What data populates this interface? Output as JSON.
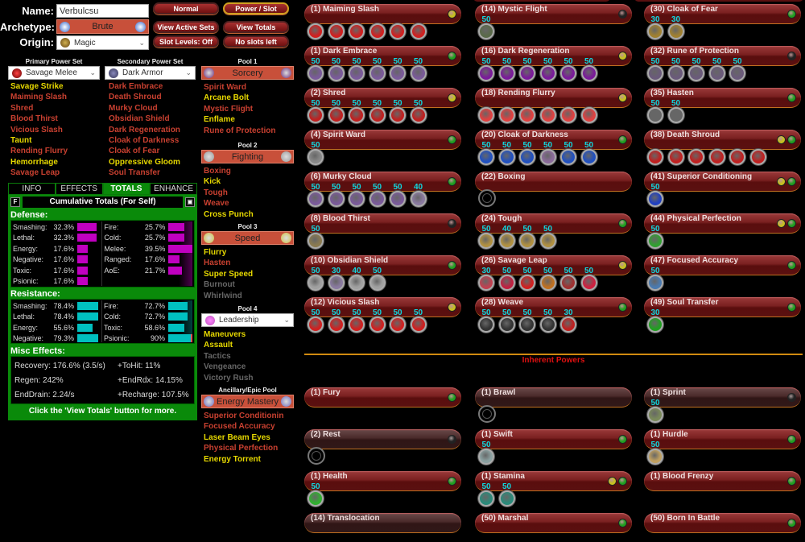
{
  "header": {
    "name_label": "Name:",
    "name_value": "Verbulcsu",
    "archetype_label": "Archetype:",
    "archetype_value": "Brute",
    "origin_label": "Origin:",
    "origin_value": "Magic"
  },
  "buttons": {
    "normal": "Normal",
    "power_slot": "Power / Slot",
    "view_active_sets": "View Active Sets",
    "view_totals": "View Totals",
    "slot_levels": "Slot Levels: Off",
    "no_slots": "No slots left"
  },
  "primary": {
    "header": "Primary Power Set",
    "value": "Savage Melee",
    "powers": [
      {
        "label": "Savage Strike",
        "state": "avail"
      },
      {
        "label": "Maiming Slash",
        "state": "taken"
      },
      {
        "label": "Shred",
        "state": "taken"
      },
      {
        "label": "Blood Thirst",
        "state": "taken"
      },
      {
        "label": "Vicious Slash",
        "state": "taken"
      },
      {
        "label": "Taunt",
        "state": "avail"
      },
      {
        "label": "Rending Flurry",
        "state": "taken"
      },
      {
        "label": "Hemorrhage",
        "state": "avail"
      },
      {
        "label": "Savage Leap",
        "state": "taken"
      }
    ]
  },
  "secondary": {
    "header": "Secondary Power Set",
    "value": "Dark Armor",
    "powers": [
      {
        "label": "Dark Embrace",
        "state": "taken"
      },
      {
        "label": "Death Shroud",
        "state": "taken"
      },
      {
        "label": "Murky Cloud",
        "state": "taken"
      },
      {
        "label": "Obsidian Shield",
        "state": "taken"
      },
      {
        "label": "Dark Regeneration",
        "state": "taken"
      },
      {
        "label": "Cloak of Darkness",
        "state": "taken"
      },
      {
        "label": "Cloak of Fear",
        "state": "taken"
      },
      {
        "label": "Oppressive Gloom",
        "state": "avail"
      },
      {
        "label": "Soul Transfer",
        "state": "taken"
      }
    ]
  },
  "pools": [
    {
      "header": "Pool 1",
      "value": "Sorcery",
      "type": "box",
      "powers": [
        {
          "label": "Spirit Ward",
          "state": "taken"
        },
        {
          "label": "Arcane Bolt",
          "state": "avail"
        },
        {
          "label": "Mystic Flight",
          "state": "taken"
        },
        {
          "label": "Enflame",
          "state": "avail"
        },
        {
          "label": "Rune of Protection",
          "state": "taken"
        }
      ]
    },
    {
      "header": "Pool 2",
      "value": "Fighting",
      "type": "box",
      "powers": [
        {
          "label": "Boxing",
          "state": "taken"
        },
        {
          "label": "Kick",
          "state": "avail"
        },
        {
          "label": "Tough",
          "state": "taken"
        },
        {
          "label": "Weave",
          "state": "taken"
        },
        {
          "label": "Cross Punch",
          "state": "avail"
        }
      ]
    },
    {
      "header": "Pool 3",
      "value": "Speed",
      "type": "box",
      "powers": [
        {
          "label": "Flurry",
          "state": "avail"
        },
        {
          "label": "Hasten",
          "state": "taken"
        },
        {
          "label": "Super Speed",
          "state": "avail"
        },
        {
          "label": "Burnout",
          "state": "na"
        },
        {
          "label": "Whirlwind",
          "state": "na"
        }
      ]
    },
    {
      "header": "Pool 4",
      "value": "Leadership",
      "type": "dropdown",
      "powers": [
        {
          "label": "Maneuvers",
          "state": "avail"
        },
        {
          "label": "Assault",
          "state": "avail"
        },
        {
          "label": "Tactics",
          "state": "na"
        },
        {
          "label": "Vengeance",
          "state": "na"
        },
        {
          "label": "Victory Rush",
          "state": "na"
        }
      ]
    },
    {
      "header": "Ancillary/Epic Pool",
      "value": "Energy Mastery",
      "type": "box",
      "powers": [
        {
          "label": "Superior Conditionin",
          "state": "taken"
        },
        {
          "label": "Focused Accuracy",
          "state": "taken"
        },
        {
          "label": "Laser Beam Eyes",
          "state": "avail"
        },
        {
          "label": "Physical Perfection",
          "state": "taken"
        },
        {
          "label": "Energy Torrent",
          "state": "avail"
        }
      ]
    }
  ],
  "info_tabs": {
    "tabs": [
      "INFO",
      "EFFECTS",
      "TOTALS",
      "ENHANCE"
    ],
    "active": "TOTALS",
    "f_button": "F",
    "title": "Cumulative Totals (For Self)",
    "defense_label": "Defense:",
    "defense": [
      {
        "label": "Smashing:",
        "value": "32.3%",
        "pct": 32.3
      },
      {
        "label": "Lethal:",
        "value": "32.3%",
        "pct": 32.3
      },
      {
        "label": "Energy:",
        "value": "17.6%",
        "pct": 17.6
      },
      {
        "label": "Negative:",
        "value": "17.6%",
        "pct": 17.6
      },
      {
        "label": "Toxic:",
        "value": "17.6%",
        "pct": 17.6
      },
      {
        "label": "Psionic:",
        "value": "17.6%",
        "pct": 17.6
      },
      {
        "label": "Fire:",
        "value": "25.7%",
        "pct": 25.7
      },
      {
        "label": "Cold:",
        "value": "25.7%",
        "pct": 25.7
      },
      {
        "label": "Melee:",
        "value": "39.5%",
        "pct": 39.5
      },
      {
        "label": "Ranged:",
        "value": "17.6%",
        "pct": 17.6
      },
      {
        "label": "AoE:",
        "value": "21.7%",
        "pct": 21.7
      }
    ],
    "resistance_label": "Resistance:",
    "resistance": [
      {
        "label": "Smashing:",
        "value": "78.4%",
        "pct": 78.4
      },
      {
        "label": "Lethal:",
        "value": "78.4%",
        "pct": 78.4
      },
      {
        "label": "Energy:",
        "value": "55.6%",
        "pct": 55.6
      },
      {
        "label": "Negative:",
        "value": "79.3%",
        "pct": 79.3
      },
      {
        "label": "Fire:",
        "value": "72.7%",
        "pct": 72.7
      },
      {
        "label": "Cold:",
        "value": "72.7%",
        "pct": 72.7
      },
      {
        "label": "Toxic:",
        "value": "58.6%",
        "pct": 58.6
      },
      {
        "label": "Psionic:",
        "value": "90%",
        "pct": 90
      }
    ],
    "misc_label": "Misc Effects:",
    "misc": [
      "Recovery: 176.6% (3.5/s)",
      "+ToHit: 11%",
      "Regen: 242%",
      "+EndRdx: 14.15%",
      "EndDrain: 2.24/s",
      "+Recharge: 107.5%"
    ],
    "footer": "Click the 'View Totals' button for more."
  },
  "colors": {
    "defense_bar": "#c000c0",
    "resistance_bar": "#00c0c0",
    "light_green": "#20a020",
    "light_yellow": "#c8c020",
    "light_off": "#222222"
  },
  "inherent_label": "Inherent Powers",
  "powers": [
    [
      {
        "label": "(1) Maiming Slash",
        "lights": [
          "y"
        ],
        "slots": [
          {
            "l": "",
            "c": "#d02020"
          },
          {
            "l": "",
            "c": "#d02020"
          },
          {
            "l": "",
            "c": "#d02020"
          },
          {
            "l": "",
            "c": "#d02020"
          },
          {
            "l": "",
            "c": "#d02020"
          },
          {
            "l": "",
            "c": "#d02020"
          }
        ]
      },
      {
        "label": "(1) Dark Embrace",
        "lights": [
          "g"
        ],
        "slots": [
          {
            "l": "50",
            "c": "#7a5a9a"
          },
          {
            "l": "50",
            "c": "#7a5a9a"
          },
          {
            "l": "50",
            "c": "#7a5a9a"
          },
          {
            "l": "50",
            "c": "#7a5a9a"
          },
          {
            "l": "50",
            "c": "#7a5a9a"
          },
          {
            "l": "50",
            "c": "#7a5a9a"
          }
        ]
      },
      {
        "label": "(2) Shred",
        "lights": [
          "y"
        ],
        "slots": [
          {
            "l": "50",
            "c": "#c02020"
          },
          {
            "l": "50",
            "c": "#c02020"
          },
          {
            "l": "50",
            "c": "#c02020"
          },
          {
            "l": "50",
            "c": "#c02020"
          },
          {
            "l": "50",
            "c": "#c02020"
          },
          {
            "l": "50",
            "c": "#c02020"
          }
        ]
      },
      {
        "label": "(4) Spirit Ward",
        "lights": [
          "g"
        ],
        "slots": [
          {
            "l": "50",
            "c": "#888888"
          }
        ]
      },
      {
        "label": "(6) Murky Cloud",
        "lights": [
          "g"
        ],
        "slots": [
          {
            "l": "50",
            "c": "#7a5a9a"
          },
          {
            "l": "50",
            "c": "#7a5a9a"
          },
          {
            "l": "50",
            "c": "#7a5a9a"
          },
          {
            "l": "50",
            "c": "#7a5a9a"
          },
          {
            "l": "50",
            "c": "#7a5a9a"
          },
          {
            "l": "40",
            "c": "#8a7aa0"
          }
        ]
      },
      {
        "label": "(8) Blood Thirst",
        "lights": [
          "k"
        ],
        "slots": [
          {
            "l": "50",
            "c": "#8a7a50"
          }
        ]
      },
      {
        "label": "(10) Obsidian Shield",
        "lights": [
          "g"
        ],
        "slots": [
          {
            "l": "50",
            "c": "#a0a0a0"
          },
          {
            "l": "30",
            "c": "#8a7aa0"
          },
          {
            "l": "40",
            "c": "#a0a0a0"
          },
          {
            "l": "50",
            "c": "#a0a0a0"
          }
        ]
      },
      {
        "label": "(12) Vicious Slash",
        "lights": [
          "y"
        ],
        "slots": [
          {
            "l": "50",
            "c": "#d02020"
          },
          {
            "l": "50",
            "c": "#d02020"
          },
          {
            "l": "50",
            "c": "#d02020"
          },
          {
            "l": "50",
            "c": "#d02020"
          },
          {
            "l": "50",
            "c": "#d02020"
          },
          {
            "l": "50",
            "c": "#d02020"
          }
        ]
      }
    ],
    [
      {
        "label": "(14) Mystic Flight",
        "lights": [
          "k"
        ],
        "slots": [
          {
            "l": "50",
            "c": "#5a6a4a"
          }
        ]
      },
      {
        "label": "(16) Dark Regeneration",
        "lights": [
          "y"
        ],
        "slots": [
          {
            "l": "50",
            "c": "#7a1a9a"
          },
          {
            "l": "50",
            "c": "#7a1a9a"
          },
          {
            "l": "50",
            "c": "#7a1a9a"
          },
          {
            "l": "50",
            "c": "#7a1a9a"
          },
          {
            "l": "50",
            "c": "#7a1a9a"
          },
          {
            "l": "50",
            "c": "#7a1a9a"
          }
        ]
      },
      {
        "label": "(18) Rending Flurry",
        "lights": [
          "y"
        ],
        "slots": [
          {
            "l": "",
            "c": "#e04040"
          },
          {
            "l": "",
            "c": "#e04040"
          },
          {
            "l": "",
            "c": "#e04040"
          },
          {
            "l": "",
            "c": "#e04040"
          },
          {
            "l": "",
            "c": "#e04040"
          },
          {
            "l": "",
            "c": "#e04040"
          }
        ]
      },
      {
        "label": "(20) Cloak of Darkness",
        "lights": [
          "g"
        ],
        "slots": [
          {
            "l": "50",
            "c": "#2050c0"
          },
          {
            "l": "50",
            "c": "#2050c0"
          },
          {
            "l": "50",
            "c": "#2050c0"
          },
          {
            "l": "50",
            "c": "#8a6a9a"
          },
          {
            "l": "50",
            "c": "#2050c0"
          },
          {
            "l": "50",
            "c": "#2050c0"
          }
        ]
      },
      {
        "label": "(22) Boxing",
        "lights": [],
        "slots": [
          {
            "l": "",
            "c": ""
          }
        ]
      },
      {
        "label": "(24) Tough",
        "lights": [
          "g"
        ],
        "slots": [
          {
            "l": "50",
            "c": "#b09040"
          },
          {
            "l": "40",
            "c": "#b09040"
          },
          {
            "l": "50",
            "c": "#b09040"
          },
          {
            "l": "50",
            "c": "#b09040"
          }
        ]
      },
      {
        "label": "(26) Savage Leap",
        "lights": [
          "y"
        ],
        "slots": [
          {
            "l": "30",
            "c": "#c04050"
          },
          {
            "l": "50",
            "c": "#c02040"
          },
          {
            "l": "50",
            "c": "#d02020"
          },
          {
            "l": "50",
            "c": "#c07020"
          },
          {
            "l": "50",
            "c": "#a03030"
          },
          {
            "l": "50",
            "c": "#d02040"
          }
        ]
      },
      {
        "label": "(28) Weave",
        "lights": [
          "g"
        ],
        "slots": [
          {
            "l": "50",
            "c": "#333333"
          },
          {
            "l": "50",
            "c": "#333333"
          },
          {
            "l": "50",
            "c": "#333333"
          },
          {
            "l": "50",
            "c": "#333333"
          },
          {
            "l": "30",
            "c": "#c02020"
          }
        ]
      }
    ],
    [
      {
        "label": "(30) Cloak of Fear",
        "lights": [
          "g"
        ],
        "slots": [
          {
            "l": "30",
            "c": "#a08030"
          },
          {
            "l": "30",
            "c": "#a08030"
          }
        ]
      },
      {
        "label": "(32) Rune of Protection",
        "lights": [
          "k"
        ],
        "slots": [
          {
            "l": "50",
            "c": "#6a5a7a"
          },
          {
            "l": "50",
            "c": "#6a5a7a"
          },
          {
            "l": "50",
            "c": "#6a5a7a"
          },
          {
            "l": "50",
            "c": "#6a5a7a"
          },
          {
            "l": "50",
            "c": "#6a5a7a"
          }
        ]
      },
      {
        "label": "(35) Hasten",
        "lights": [
          "g"
        ],
        "slots": [
          {
            "l": "50",
            "c": "#666666"
          },
          {
            "l": "50",
            "c": "#666666"
          }
        ]
      },
      {
        "label": "(38) Death Shroud",
        "lights": [
          "y",
          "g"
        ],
        "slots": [
          {
            "l": "",
            "c": "#c02020"
          },
          {
            "l": "",
            "c": "#c02020"
          },
          {
            "l": "",
            "c": "#c02020"
          },
          {
            "l": "",
            "c": "#c02020"
          },
          {
            "l": "",
            "c": "#c02020"
          },
          {
            "l": "",
            "c": "#c02020"
          }
        ]
      },
      {
        "label": "(41) Superior Conditioning",
        "lights": [
          "y",
          "g"
        ],
        "slots": [
          {
            "l": "50",
            "c": "#2040c0"
          }
        ]
      },
      {
        "label": "(44) Physical Perfection",
        "lights": [
          "y",
          "g"
        ],
        "slots": [
          {
            "l": "50",
            "c": "#30a030"
          }
        ]
      },
      {
        "label": "(47) Focused Accuracy",
        "lights": [
          "g"
        ],
        "slots": [
          {
            "l": "50",
            "c": "#4a7ab0"
          }
        ]
      },
      {
        "label": "(49) Soul Transfer",
        "lights": [
          "g"
        ],
        "slots": [
          {
            "l": "30",
            "c": "#20a020"
          }
        ]
      }
    ]
  ],
  "inherent": [
    [
      {
        "label": "(1) Fury",
        "lights": [
          "g"
        ],
        "slots": []
      },
      {
        "label": "(2) Rest",
        "dim": true,
        "lights": [
          "k"
        ],
        "slots": [
          {
            "l": "",
            "c": ""
          }
        ]
      },
      {
        "label": "(1) Health",
        "lights": [
          "g"
        ],
        "slots": [
          {
            "l": "50",
            "c": "#30b030"
          }
        ]
      },
      {
        "label": "(14) Translocation",
        "dim": true,
        "lights": [],
        "slots": []
      }
    ],
    [
      {
        "label": "(1) Brawl",
        "dim": true,
        "lights": [],
        "slots": [
          {
            "l": "",
            "c": ""
          }
        ]
      },
      {
        "label": "(1) Swift",
        "lights": [
          "g"
        ],
        "slots": [
          {
            "l": "50",
            "c": "#8aa0a0"
          }
        ]
      },
      {
        "label": "(1) Stamina",
        "lights": [
          "y",
          "g"
        ],
        "slots": [
          {
            "l": "50",
            "c": "#2a8a7a"
          },
          {
            "l": "50",
            "c": "#2a8a7a"
          }
        ]
      },
      {
        "label": "(50) Marshal",
        "lights": [
          "g"
        ],
        "slots": []
      }
    ],
    [
      {
        "label": "(1) Sprint",
        "dim": true,
        "lights": [
          "k"
        ],
        "slots": [
          {
            "l": "50",
            "c": "#7a8a5a"
          }
        ]
      },
      {
        "label": "(1) Hurdle",
        "lights": [
          "g"
        ],
        "slots": [
          {
            "l": "50",
            "c": "#c0a060"
          }
        ]
      },
      {
        "label": "(1) Blood Frenzy",
        "lights": [
          "g"
        ],
        "slots": []
      },
      {
        "label": "(50) Born In Battle",
        "lights": [
          "g"
        ],
        "slots": []
      }
    ]
  ]
}
